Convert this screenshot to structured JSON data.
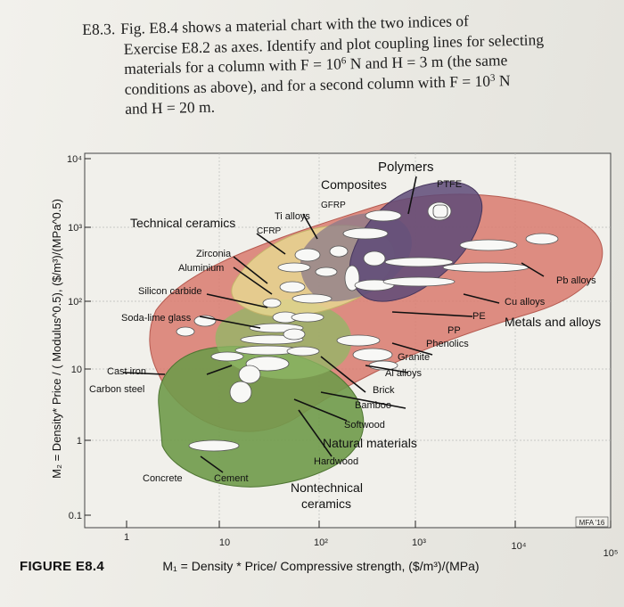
{
  "exercise": {
    "number": "E8.3.",
    "lines": [
      "Fig. E8.4 shows a material chart with the two indices of",
      "Exercise E8.2 as axes. Identify and plot coupling lines for selecting",
      "materials for a column with F = 10",
      "6",
      " N and H = 3 m (the same",
      "conditions as above), and for a second column with F = 10",
      "3",
      " N",
      "and H = 20 m."
    ]
  },
  "figure_label": "FIGURE E8.4",
  "chart_data": {
    "type": "scatter",
    "title": "",
    "xlabel": "M₁ = Density * Price/ Compressive strength, ($/m³)/(MPa)",
    "ylabel": "M₂ = Density* Price / ( Modulus^0.5), ($/m³)/(MPa^0.5)",
    "x_scale": "log",
    "y_scale": "log",
    "xlim": [
      1,
      100000
    ],
    "ylim": [
      0.1,
      10000
    ],
    "x_ticks": [
      "1",
      "10",
      "10²",
      "10³",
      "10⁴",
      "10⁵"
    ],
    "y_ticks": [
      "0.1",
      "1",
      "10",
      "10²",
      "10³",
      "10⁴"
    ],
    "credit": "MFA '16",
    "families": [
      {
        "name": "Polymers",
        "color": "#5e4a78"
      },
      {
        "name": "Composites",
        "color": "#7a6a7a"
      },
      {
        "name": "Technical ceramics",
        "color": "#e6d690"
      },
      {
        "name": "Metals and alloys",
        "color": "#d97a6e"
      },
      {
        "name": "Natural materials",
        "color": "#7fa659"
      },
      {
        "name": "Nontechnical ceramics",
        "color": "#6f9a4a"
      }
    ],
    "labels": {
      "polymers": "Polymers",
      "composites": "Composites",
      "ptfe": "PTFE",
      "gfrp": "GFRP",
      "ti_alloys": "Ti alloys",
      "cfrp": "CFRP",
      "technical_ceramics": "Technical ceramics",
      "zirconia": "Zirconia",
      "aluminium": "Aluminium",
      "silicon_carbide": "Silicon carbide",
      "soda_lime_glass": "Soda-lime glass",
      "pb_alloys": "Pb alloys",
      "cu_alloys": "Cu alloys",
      "pe": "PE",
      "metals_and_alloys": "Metals and alloys",
      "pp": "PP",
      "phenolics": "Phenolics",
      "granite": "Granite",
      "al_alloys": "Al alloys",
      "cast_iron": "Cast iron",
      "carbon_steel": "Carbon steel",
      "brick": "Brick",
      "bamboo": "Bamboo",
      "softwood": "Softwood",
      "natural_materials": "Natural materials",
      "hardwood": "Hardwood",
      "concrete": "Concrete",
      "cement": "Cement",
      "nontechnical_ceramics_1": "Nontechnical",
      "nontechnical_ceramics_2": "ceramics"
    }
  }
}
